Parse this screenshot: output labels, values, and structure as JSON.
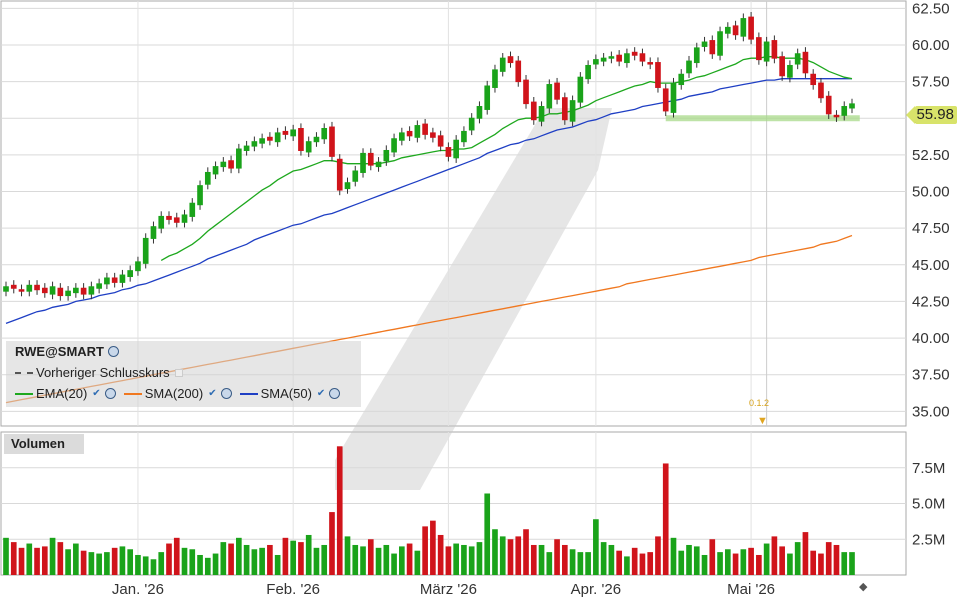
{
  "chart_data": {
    "type": "candlestick",
    "symbol": "RWE@SMART",
    "last_price_label": "55.98",
    "price_axis": {
      "ticks": [
        "62.50",
        "60.00",
        "57.50",
        "55.00",
        "52.50",
        "50.00",
        "47.50",
        "45.00",
        "42.50",
        "40.00",
        "37.50",
        "35.00"
      ],
      "ylim": [
        34,
        63
      ]
    },
    "volume_axis": {
      "ticks": [
        "7.5M",
        "5.0M",
        "2.5M"
      ],
      "ylim": [
        0,
        10
      ]
    },
    "x_ticks": [
      "Jan. '26",
      "Feb. '26",
      "März '26",
      "Apr. '26",
      "Mai '26"
    ],
    "x_tick_index": [
      17,
      37,
      57,
      76,
      96
    ],
    "legend": {
      "previous_close": "Vorheriger Schlusskurs",
      "ema20": "EMA(20)",
      "sma200": "SMA(200)",
      "sma50": "SMA(50)"
    },
    "volume_title": "Volumen",
    "dividend_label": "0.1.2",
    "dividend_index": 98,
    "support_level": 55.0,
    "support_range": [
      85,
      110
    ],
    "colors": {
      "up": "#1aa31a",
      "down": "#d0141b",
      "ema20": "#1ea81e",
      "sma50": "#1f3fc4",
      "sma200": "#f07820",
      "support": "#a8d98a"
    },
    "closes": [
      43.5,
      43.4,
      43.2,
      43.6,
      43.3,
      43.1,
      43.5,
      42.9,
      43.2,
      43.4,
      43.0,
      43.5,
      43.7,
      44.1,
      43.8,
      44.3,
      44.6,
      45.2,
      46.8,
      47.6,
      48.3,
      48.1,
      47.9,
      48.4,
      49.2,
      50.4,
      51.3,
      51.7,
      52.0,
      51.6,
      52.9,
      53.1,
      53.4,
      53.6,
      53.5,
      54.0,
      53.9,
      54.2,
      52.8,
      53.4,
      53.7,
      54.3,
      52.4,
      50.1,
      50.6,
      51.4,
      52.6,
      51.8,
      52.0,
      52.8,
      53.6,
      54.0,
      53.8,
      54.5,
      53.9,
      53.7,
      53.1,
      52.4,
      53.5,
      54.1,
      55.0,
      55.8,
      57.2,
      58.3,
      59.1,
      58.8,
      57.5,
      56.0,
      54.9,
      55.8,
      57.3,
      56.3,
      54.9,
      56.2,
      57.8,
      58.6,
      59.0,
      59.1,
      59.2,
      58.9,
      59.4,
      59.3,
      58.9,
      58.7,
      57.1,
      55.5,
      57.4,
      58.0,
      58.9,
      59.8,
      60.2,
      59.4,
      60.9,
      61.2,
      60.7,
      61.8,
      60.4,
      59.0,
      60.2,
      59.1,
      57.9,
      58.6,
      59.4,
      58.1,
      57.3,
      56.4,
      55.3,
      55.1,
      55.8,
      55.98
    ],
    "opens": [
      43.2,
      43.6,
      43.3,
      43.2,
      43.6,
      43.4,
      43.0,
      43.4,
      42.9,
      43.1,
      43.4,
      43.0,
      43.4,
      43.7,
      44.1,
      43.8,
      44.2,
      44.6,
      45.1,
      46.8,
      47.5,
      48.3,
      48.2,
      47.9,
      48.3,
      49.1,
      50.5,
      51.2,
      51.7,
      52.1,
      51.6,
      52.8,
      53.1,
      53.3,
      53.7,
      53.4,
      54.1,
      53.8,
      54.3,
      52.7,
      53.4,
      53.6,
      54.4,
      52.2,
      50.2,
      50.7,
      51.3,
      52.6,
      51.7,
      52.1,
      52.7,
      53.5,
      54.1,
      53.7,
      54.6,
      54.0,
      53.8,
      53.0,
      52.3,
      53.4,
      54.2,
      55.0,
      55.6,
      57.1,
      58.2,
      59.2,
      58.9,
      57.6,
      56.1,
      54.8,
      55.7,
      57.4,
      56.4,
      54.8,
      56.1,
      57.7,
      58.7,
      58.9,
      59.1,
      59.3,
      58.8,
      59.5,
      59.4,
      58.8,
      58.8,
      57.0,
      55.4,
      57.3,
      58.1,
      58.8,
      59.9,
      60.3,
      59.3,
      60.8,
      61.3,
      60.6,
      61.9,
      60.5,
      58.9,
      60.3,
      59.2,
      57.8,
      58.7,
      59.5,
      58.0,
      57.4,
      56.5,
      55.2,
      55.2,
      55.7
    ],
    "volumes": [
      2.6,
      2.3,
      1.9,
      2.2,
      1.9,
      2.0,
      2.6,
      2.3,
      1.8,
      2.2,
      1.7,
      1.6,
      1.5,
      1.6,
      1.9,
      2.0,
      1.8,
      1.4,
      1.3,
      1.1,
      1.6,
      2.2,
      2.6,
      1.9,
      1.8,
      1.4,
      1.2,
      1.5,
      2.3,
      2.2,
      2.6,
      2.1,
      1.8,
      1.9,
      2.1,
      1.4,
      2.6,
      2.4,
      2.3,
      2.8,
      1.9,
      2.1,
      4.4,
      9.0,
      2.7,
      2.1,
      2.0,
      2.5,
      1.9,
      2.1,
      1.5,
      2.0,
      2.2,
      1.7,
      3.4,
      3.8,
      2.8,
      2.0,
      2.2,
      2.1,
      2.0,
      2.3,
      5.7,
      3.2,
      2.7,
      2.5,
      2.7,
      3.2,
      2.1,
      2.1,
      1.6,
      2.5,
      2.1,
      1.8,
      1.6,
      1.6,
      3.9,
      2.3,
      2.1,
      1.7,
      1.3,
      1.9,
      1.5,
      1.6,
      2.7,
      7.8,
      2.6,
      1.7,
      2.1,
      2.0,
      1.4,
      2.5,
      1.6,
      1.8,
      1.5,
      1.8,
      1.9,
      1.4,
      2.2,
      2.7,
      2.0,
      1.5,
      2.3,
      3.0,
      1.7,
      1.5,
      2.3,
      2.1,
      1.6,
      1.6
    ],
    "ema20": [
      null,
      null,
      null,
      null,
      null,
      null,
      null,
      null,
      null,
      null,
      null,
      null,
      null,
      null,
      null,
      null,
      null,
      null,
      null,
      null,
      45.3,
      45.6,
      45.8,
      46.1,
      46.4,
      46.8,
      47.3,
      47.7,
      48.1,
      48.5,
      48.9,
      49.3,
      49.7,
      50.1,
      50.4,
      50.8,
      51.1,
      51.4,
      51.5,
      51.7,
      51.9,
      52.1,
      52.1,
      52.0,
      51.9,
      51.9,
      51.9,
      51.9,
      51.9,
      52.0,
      52.1,
      52.3,
      52.4,
      52.5,
      52.6,
      52.7,
      52.8,
      52.8,
      52.9,
      52.9,
      53.0,
      53.3,
      53.6,
      53.9,
      54.3,
      54.6,
      54.9,
      55.0,
      55.0,
      55.1,
      55.3,
      55.3,
      55.4,
      55.5,
      55.7,
      55.9,
      56.2,
      56.4,
      56.6,
      56.8,
      57.0,
      57.2,
      57.3,
      57.5,
      57.4,
      57.4,
      57.4,
      57.5,
      57.6,
      57.8,
      57.9,
      58.1,
      58.3,
      58.5,
      58.7,
      59.0,
      59.1,
      59.1,
      59.2,
      59.2,
      59.1,
      59.1,
      59.1,
      59.0,
      58.8,
      58.5,
      58.2,
      58.0,
      57.8,
      57.7
    ],
    "sma50": [
      41.0,
      41.2,
      41.4,
      41.6,
      41.8,
      41.9,
      42.1,
      42.2,
      42.3,
      42.5,
      42.6,
      42.7,
      42.9,
      43.0,
      43.1,
      43.3,
      43.4,
      43.6,
      43.7,
      43.9,
      44.1,
      44.3,
      44.5,
      44.7,
      44.9,
      45.1,
      45.4,
      45.6,
      45.8,
      46.0,
      46.2,
      46.4,
      46.7,
      46.9,
      47.1,
      47.3,
      47.5,
      47.7,
      47.8,
      48.0,
      48.2,
      48.4,
      48.5,
      48.7,
      48.9,
      49.1,
      49.3,
      49.5,
      49.7,
      49.9,
      50.1,
      50.3,
      50.5,
      50.7,
      50.9,
      51.1,
      51.3,
      51.5,
      51.7,
      51.9,
      52.1,
      52.3,
      52.6,
      52.8,
      53.0,
      53.2,
      53.3,
      53.5,
      53.6,
      53.8,
      54.0,
      54.2,
      54.3,
      54.4,
      54.6,
      54.8,
      54.9,
      55.1,
      55.3,
      55.4,
      55.5,
      55.6,
      55.8,
      55.9,
      56.0,
      56.1,
      56.2,
      56.3,
      56.5,
      56.6,
      56.7,
      56.8,
      57.0,
      57.1,
      57.2,
      57.3,
      57.4,
      57.5,
      57.6,
      57.6,
      57.7,
      57.7,
      57.7,
      57.7,
      57.7,
      57.7,
      57.7,
      57.7,
      57.7,
      57.7
    ],
    "sma200": [
      35.6,
      35.7,
      35.8,
      35.9,
      36.0,
      36.1,
      36.2,
      36.3,
      36.4,
      36.5,
      36.6,
      36.7,
      36.8,
      36.9,
      37.0,
      37.1,
      37.2,
      37.3,
      37.4,
      37.5,
      37.6,
      37.7,
      37.8,
      37.9,
      38.0,
      38.1,
      38.2,
      38.3,
      38.4,
      38.5,
      38.6,
      38.7,
      38.8,
      38.9,
      39.0,
      39.1,
      39.2,
      39.3,
      39.4,
      39.5,
      39.6,
      39.7,
      39.8,
      39.9,
      40.0,
      40.1,
      40.2,
      40.3,
      40.4,
      40.5,
      40.6,
      40.7,
      40.8,
      40.9,
      41.0,
      41.1,
      41.2,
      41.3,
      41.4,
      41.5,
      41.6,
      41.7,
      41.8,
      41.9,
      42.0,
      42.1,
      42.2,
      42.3,
      42.4,
      42.5,
      42.6,
      42.7,
      42.8,
      42.9,
      43.0,
      43.1,
      43.2,
      43.3,
      43.4,
      43.5,
      43.7,
      43.8,
      43.9,
      44.0,
      44.1,
      44.2,
      44.3,
      44.4,
      44.5,
      44.6,
      44.7,
      44.8,
      44.9,
      45.0,
      45.1,
      45.2,
      45.3,
      45.5,
      45.6,
      45.7,
      45.8,
      45.9,
      46.0,
      46.1,
      46.2,
      46.4,
      46.5,
      46.6,
      46.8,
      47.0
    ]
  }
}
